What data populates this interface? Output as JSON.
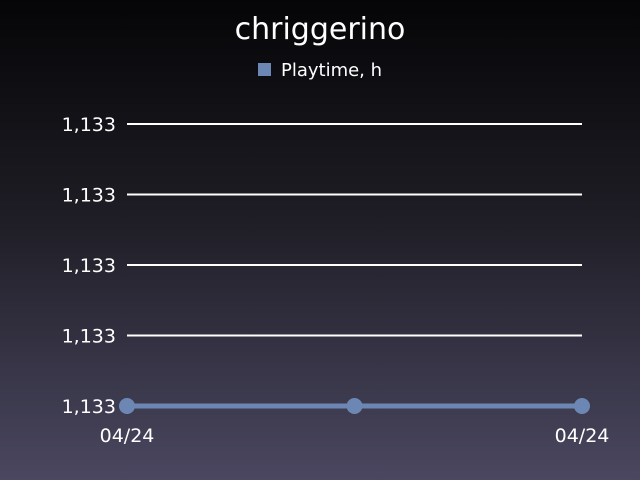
{
  "chart_data": {
    "type": "line",
    "title": "chriggerino",
    "xlabel": "",
    "ylabel": "",
    "x": [
      "04/24",
      "",
      "04/24"
    ],
    "x_tick_labels": [
      "04/24",
      "04/24"
    ],
    "y_tick_labels": [
      "1,133",
      "1,133",
      "1,133",
      "1,133",
      "1,133"
    ],
    "series": [
      {
        "name": "Playtime, h",
        "values": [
          1133,
          1133,
          1133
        ]
      }
    ],
    "grid": true,
    "legend_position": "top",
    "colors": {
      "series": "#6d87b4",
      "grid": "#ffffff"
    }
  }
}
